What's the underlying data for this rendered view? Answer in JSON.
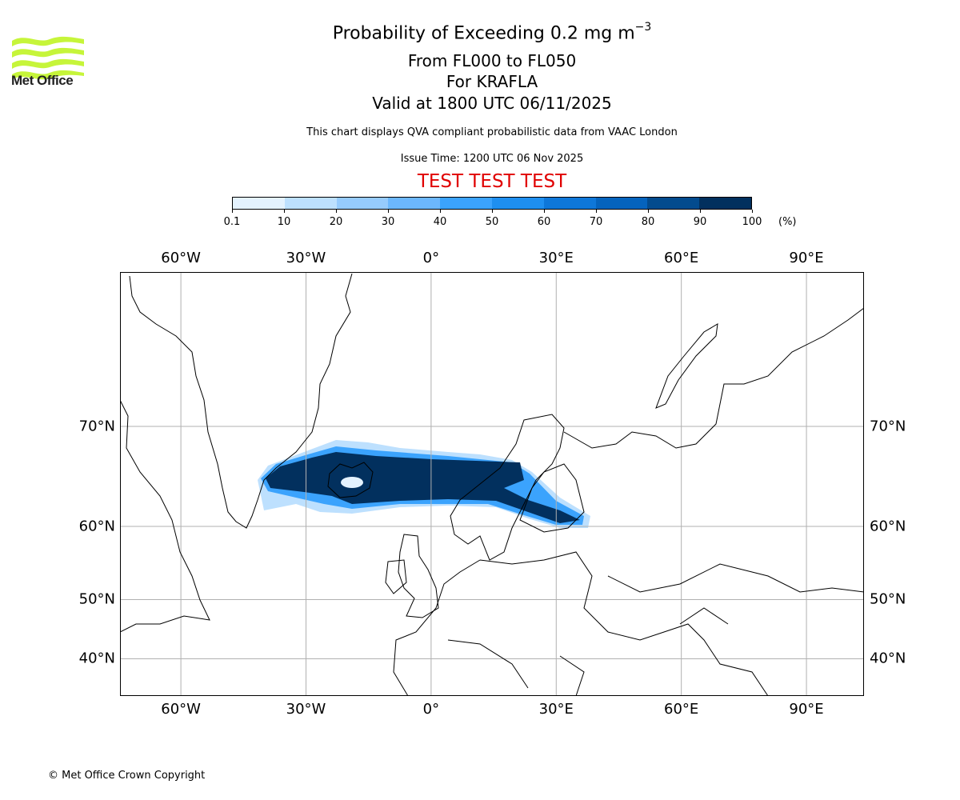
{
  "logo": {
    "text": "Met Office",
    "color": "#c6f53a"
  },
  "header": {
    "title": "Probability of Exceeding 0.2 mg m",
    "title_sup": "−3",
    "levels": "From FL000 to FL050",
    "volcano": "For KRAFLA",
    "valid": "Valid at 1800 UTC 06/11/2025",
    "description": "This chart displays QVA compliant probabilistic data from VAAC London",
    "issue_time": "Issue Time: 1200 UTC 06 Nov 2025",
    "test_banner": "TEST TEST TEST"
  },
  "colorbar": {
    "ticks": [
      "0.1",
      "10",
      "20",
      "30",
      "40",
      "50",
      "60",
      "70",
      "80",
      "90",
      "100"
    ],
    "unit": "(%)",
    "colors": [
      "#e4f2fe",
      "#bde0fe",
      "#96cbfd",
      "#6cb7fd",
      "#3ba3fd",
      "#1e8ff0",
      "#0e77d9",
      "#0563bd",
      "#034b8e",
      "#02305e"
    ]
  },
  "chart_data": {
    "type": "map",
    "projection": "mercator",
    "lon_range": [
      -74.6,
      103.8
    ],
    "lat_range": [
      34.3,
      77.5
    ],
    "lon_ticks": [
      {
        "value": -60,
        "label": "60°W"
      },
      {
        "value": -30,
        "label": "30°W"
      },
      {
        "value": 0,
        "label": "0°"
      },
      {
        "value": 30,
        "label": "30°E"
      },
      {
        "value": 60,
        "label": "60°E"
      },
      {
        "value": 90,
        "label": "90°E"
      }
    ],
    "lat_ticks": [
      {
        "value": 70,
        "label": "70°N"
      },
      {
        "value": 60,
        "label": "60°N"
      },
      {
        "value": 50,
        "label": "50°N"
      },
      {
        "value": 40,
        "label": "40°N"
      }
    ],
    "grid": true,
    "plume": "Ash probability plume from Iceland eastward over Norwegian Sea to Finland/Russia, core 90-100%"
  },
  "footer": {
    "copyright": "© Met Office Crown Copyright"
  }
}
